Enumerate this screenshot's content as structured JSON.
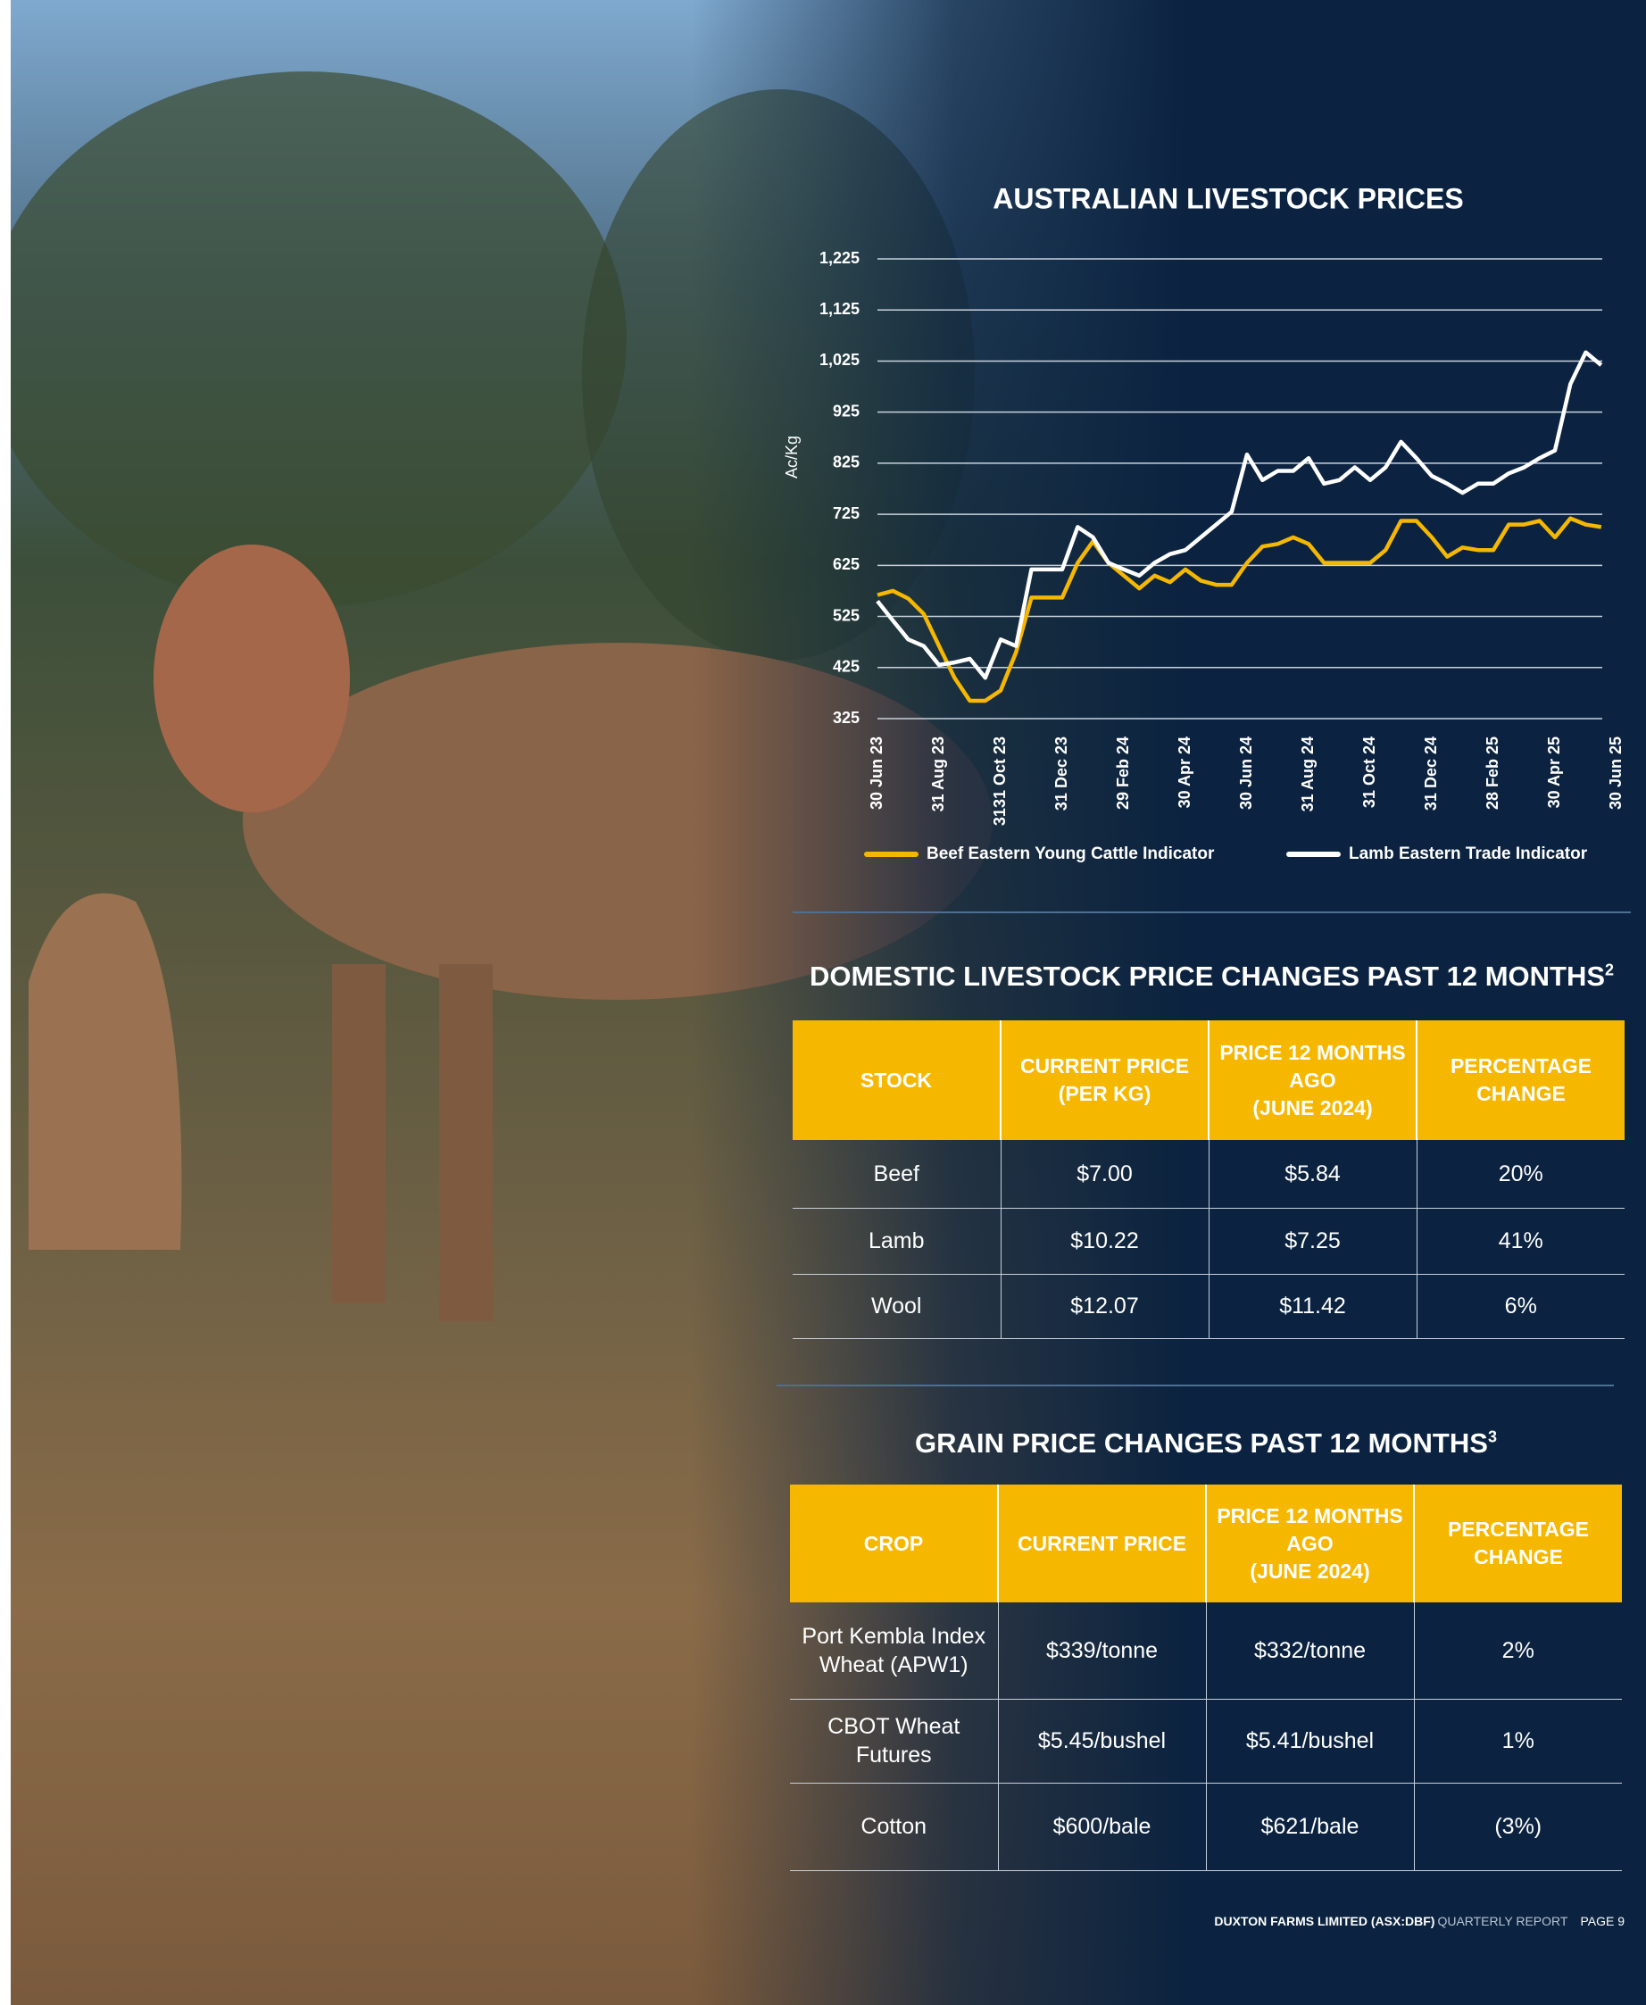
{
  "chart_data": {
    "type": "line",
    "title": "AUSTRALIAN LIVESTOCK PRICES",
    "y_label": "Ac/Kg",
    "categories": [
      "30 Jun 23",
      null,
      null,
      null,
      "31 Aug 23",
      null,
      null,
      null,
      "3131 Oct 23",
      null,
      null,
      null,
      "31 Dec 23",
      null,
      null,
      null,
      "29 Feb 24",
      null,
      null,
      null,
      "30 Apr 24",
      null,
      null,
      null,
      "30 Jun 24",
      null,
      null,
      null,
      "31 Aug 24",
      null,
      null,
      null,
      "31 Oct 24",
      null,
      null,
      null,
      "31 Dec 24",
      null,
      null,
      null,
      "28 Feb 25",
      null,
      null,
      null,
      "30 Apr 25",
      null,
      null,
      null,
      "30 Jun 25"
    ],
    "ylim": [
      325,
      1225
    ],
    "yticks": [
      325,
      425,
      525,
      625,
      725,
      825,
      925,
      {
        "value": 1025,
        "label": "1,025"
      },
      {
        "value": 1125,
        "label": "1,125"
      },
      {
        "value": 1225,
        "label": "1,225"
      }
    ],
    "grid": true,
    "legend": "bottom",
    "series": [
      {
        "name": "Beef Eastern Young Cattle Indicator",
        "color": "#f5b700",
        "values": [
          567,
          575,
          560,
          530,
          467,
          405,
          360,
          360,
          380,
          455,
          562,
          562,
          562,
          630,
          672,
          630,
          605,
          580,
          605,
          592,
          617,
          595,
          587,
          587,
          630,
          662,
          667,
          680,
          667,
          630,
          630,
          630,
          630,
          655,
          712,
          712,
          680,
          642,
          660,
          655,
          655,
          705,
          705,
          712,
          680,
          717,
          705,
          700,
          null
        ]
      },
      {
        "name": "Lamb Eastern Trade Indicator",
        "color": "#ffffff",
        "values": [
          555,
          517,
          480,
          467,
          430,
          435,
          442,
          405,
          480,
          467,
          617,
          617,
          617,
          700,
          680,
          630,
          617,
          605,
          630,
          647,
          655,
          680,
          705,
          730,
          842,
          792,
          810,
          810,
          835,
          785,
          792,
          817,
          792,
          817,
          867,
          835,
          800,
          785,
          767,
          785,
          785,
          805,
          817,
          835,
          850,
          980,
          1042,
          1017,
          null
        ]
      }
    ]
  },
  "livestock_table": {
    "title": "DOMESTIC LIVESTOCK PRICE CHANGES PAST 12 MONTHS",
    "footnote": "2",
    "header": [
      "STOCK",
      "CURRENT PRICE\n(PER KG)",
      "PRICE 12 MONTHS\nAGO\n(JUNE 2024)",
      "PERCENTAGE\nCHANGE"
    ],
    "rows": [
      [
        "Beef",
        "$7.00",
        "$5.84",
        "20%"
      ],
      [
        "Lamb",
        "$10.22",
        "$7.25",
        "41%"
      ],
      [
        "Wool",
        "$12.07",
        "$11.42",
        "6%"
      ]
    ]
  },
  "grain_table": {
    "title": "GRAIN PRICE CHANGES PAST 12 MONTHS",
    "footnote": "3",
    "header": [
      "CROP",
      "CURRENT PRICE",
      "PRICE 12 MONTHS\nAGO\n(JUNE 2024)",
      "PERCENTAGE\nCHANGE"
    ],
    "rows": [
      [
        "Port Kembla Index\nWheat (APW1)",
        "$339/tonne",
        "$332/tonne",
        "2%"
      ],
      [
        "CBOT Wheat\nFutures",
        "$5.45/bushel",
        "$5.41/bushel",
        "1%"
      ],
      [
        "Cotton",
        "$600/bale",
        "$621/bale",
        "(3%)"
      ]
    ]
  },
  "footer": {
    "company": "DUXTON FARMS LIMITED (ASX:DBF)",
    "report": "QUARTERLY REPORT",
    "page": "PAGE 9"
  }
}
